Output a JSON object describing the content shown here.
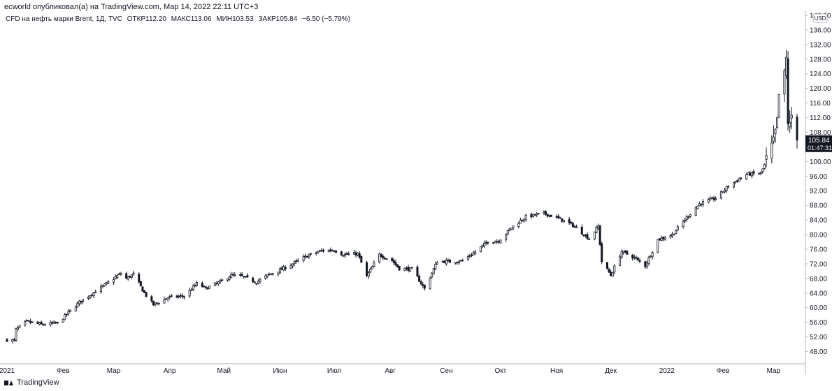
{
  "header": {
    "published": "ecworld опубликовал(а) на TradingView.com, Мар 14, 2022 22:11 UTC+3"
  },
  "symbol_line": {
    "name": "CFD на нефть марки Brent, 1Д, TVC",
    "open_label": "ОТКР",
    "open": "112.20",
    "high_label": "МАКС",
    "high": "113.06",
    "low_label": "МИН",
    "low": "103.53",
    "close_label": "ЗАКР",
    "close": "105.84",
    "change": "−6.50 (−5.79%)"
  },
  "price_axis": {
    "currency": "USD",
    "last_price": "105.84",
    "countdown": "01:47:31"
  },
  "footer": {
    "brand": "TradingView"
  },
  "colors": {
    "candle": "#131722",
    "grid_line": "#e0e3eb",
    "price_tag": "#131722"
  },
  "chart_data": {
    "type": "candlestick",
    "title": "",
    "ylim": [
      46,
      140
    ],
    "y_ticks": [
      48,
      52,
      56,
      60,
      64,
      68,
      72,
      76,
      80,
      84,
      88,
      92,
      96,
      100,
      104,
      108,
      112,
      116,
      120,
      124,
      128,
      132,
      136,
      140
    ],
    "y_tick_labels": [
      "48.00",
      "52.00",
      "56.00",
      "60.00",
      "64.00",
      "68.00",
      "72.00",
      "76.00",
      "80.00",
      "84.00",
      "88.00",
      "92.00",
      "96.00",
      "100.00",
      "104.00",
      "108.00",
      "112.00",
      "116.00",
      "120.00",
      "124.00",
      "128.00",
      "132.00",
      "136.00",
      "140.00"
    ],
    "x_range": [
      "2021-01-01",
      "2022-03-14"
    ],
    "x_ticks": [
      {
        "date": "2021-01-01",
        "label": "2021"
      },
      {
        "date": "2021-02-01",
        "label": "Фев"
      },
      {
        "date": "2021-03-01",
        "label": "Мар"
      },
      {
        "date": "2021-04-01",
        "label": "Апр"
      },
      {
        "date": "2021-05-01",
        "label": "Май"
      },
      {
        "date": "2021-06-01",
        "label": "Июн"
      },
      {
        "date": "2021-07-01",
        "label": "Июл"
      },
      {
        "date": "2021-08-01",
        "label": "Авг"
      },
      {
        "date": "2021-09-01",
        "label": "Сен"
      },
      {
        "date": "2021-10-01",
        "label": "Окт"
      },
      {
        "date": "2021-11-01",
        "label": "Ноя"
      },
      {
        "date": "2021-12-01",
        "label": "Дек"
      },
      {
        "date": "2022-01-01",
        "label": "2022"
      },
      {
        "date": "2022-02-01",
        "label": "Фев"
      },
      {
        "date": "2022-03-01",
        "label": "Мар"
      }
    ],
    "close_path": [
      [
        "2021-01-01",
        51.2
      ],
      [
        "2021-01-05",
        51.0
      ],
      [
        "2021-01-06",
        54.0
      ],
      [
        "2021-01-12",
        56.2
      ],
      [
        "2021-01-20",
        55.4
      ],
      [
        "2021-01-29",
        55.8
      ],
      [
        "2021-02-03",
        58.2
      ],
      [
        "2021-02-10",
        61.5
      ],
      [
        "2021-02-17",
        63.9
      ],
      [
        "2021-02-25",
        66.5
      ],
      [
        "2021-03-05",
        69.4
      ],
      [
        "2021-03-08",
        68.0
      ],
      [
        "2021-03-12",
        69.2
      ],
      [
        "2021-03-18",
        64.0
      ],
      [
        "2021-03-23",
        60.8
      ],
      [
        "2021-03-31",
        62.8
      ],
      [
        "2021-04-09",
        63.2
      ],
      [
        "2021-04-16",
        66.6
      ],
      [
        "2021-04-21",
        65.3
      ],
      [
        "2021-04-30",
        67.3
      ],
      [
        "2021-05-05",
        68.9
      ],
      [
        "2021-05-11",
        68.6
      ],
      [
        "2021-05-19",
        67.0
      ],
      [
        "2021-05-26",
        69.1
      ],
      [
        "2021-06-01",
        70.3
      ],
      [
        "2021-06-08",
        72.0
      ],
      [
        "2021-06-16",
        74.2
      ],
      [
        "2021-06-24",
        75.6
      ],
      [
        "2021-07-01",
        75.8
      ],
      [
        "2021-07-06",
        74.5
      ],
      [
        "2021-07-14",
        74.8
      ],
      [
        "2021-07-19",
        68.6
      ],
      [
        "2021-07-26",
        74.5
      ],
      [
        "2021-08-02",
        72.9
      ],
      [
        "2021-08-06",
        70.7
      ],
      [
        "2021-08-13",
        70.6
      ],
      [
        "2021-08-20",
        65.2
      ],
      [
        "2021-08-27",
        72.7
      ],
      [
        "2021-09-03",
        72.6
      ],
      [
        "2021-09-10",
        72.9
      ],
      [
        "2021-09-17",
        75.3
      ],
      [
        "2021-09-24",
        78.1
      ],
      [
        "2021-09-30",
        78.3
      ],
      [
        "2021-10-07",
        81.9
      ],
      [
        "2021-10-15",
        84.9
      ],
      [
        "2021-10-25",
        85.8
      ],
      [
        "2021-11-01",
        84.7
      ],
      [
        "2021-11-10",
        82.6
      ],
      [
        "2021-11-19",
        78.9
      ],
      [
        "2021-11-24",
        82.3
      ],
      [
        "2021-11-26",
        72.7
      ],
      [
        "2021-12-01",
        68.9
      ],
      [
        "2021-12-07",
        75.4
      ],
      [
        "2021-12-14",
        73.7
      ],
      [
        "2021-12-20",
        71.5
      ],
      [
        "2021-12-27",
        78.6
      ],
      [
        "2022-01-04",
        80.0
      ],
      [
        "2022-01-12",
        84.7
      ],
      [
        "2022-01-19",
        88.4
      ],
      [
        "2022-01-28",
        90.0
      ],
      [
        "2022-02-04",
        93.3
      ],
      [
        "2022-02-14",
        96.5
      ],
      [
        "2022-02-22",
        96.8
      ],
      [
        "2022-02-24",
        99.1
      ],
      [
        "2022-03-01",
        104.9
      ],
      [
        "2022-03-03",
        110.5
      ],
      [
        "2022-03-04",
        118.1
      ],
      [
        "2022-03-07",
        123.2
      ],
      [
        "2022-03-08",
        127.9
      ],
      [
        "2022-03-09",
        111.1
      ],
      [
        "2022-03-10",
        109.3
      ],
      [
        "2022-03-11",
        112.7
      ],
      [
        "2022-03-14",
        105.84
      ]
    ],
    "last_bar": {
      "date": "2022-03-14",
      "open": 112.2,
      "high": 113.06,
      "low": 103.53,
      "close": 105.84
    },
    "grid": false,
    "legend": "none"
  }
}
